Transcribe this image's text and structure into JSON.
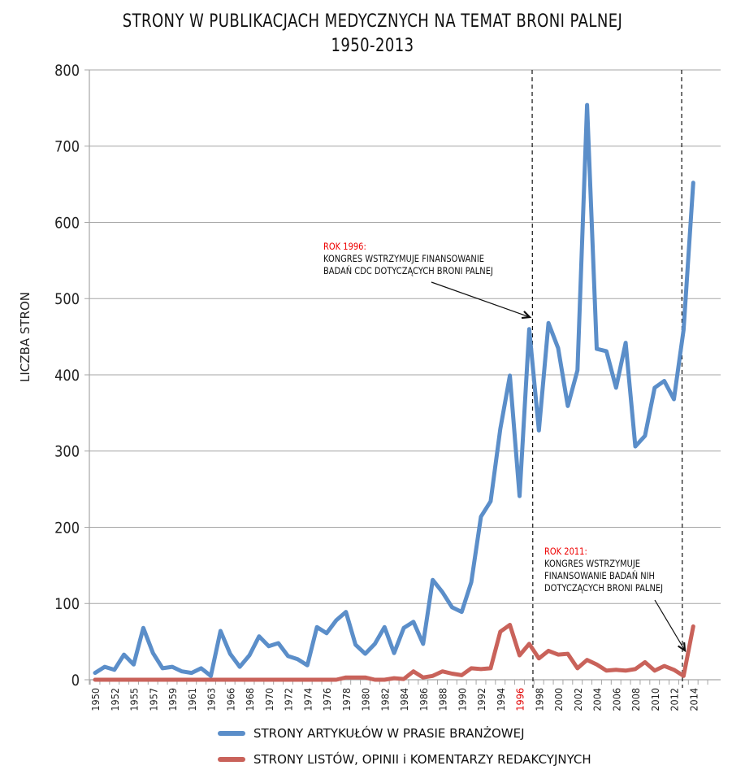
{
  "chart_data": {
    "type": "line",
    "title": "STRONY W PUBLIKACJACH MEDYCZNYCH NA TEMAT BRONI PALNEJ",
    "subtitle": "1950-2013",
    "ylabel": "LICZBA STRON",
    "xlabel": "",
    "ylim": [
      0,
      800
    ],
    "yticks": [
      "0",
      "100",
      "200",
      "300",
      "400",
      "500",
      "600",
      "700",
      "800"
    ],
    "grid": true,
    "legend_position": "bottom",
    "xtick_labels": [
      "1950",
      "1952",
      "1955",
      "1957",
      "1959",
      "1961",
      "1963",
      "1966",
      "1968",
      "1970",
      "1972",
      "1974",
      "1976",
      "1978",
      "1980",
      "1982",
      "1984",
      "1986",
      "1988",
      "1990",
      "1992",
      "1994",
      "1996",
      "1998",
      "2000",
      "2002",
      "2004",
      "2006",
      "2008",
      "2010",
      "2012",
      "2014"
    ],
    "highlight_tick": "1996",
    "highlight_color": "#e00000",
    "series": [
      {
        "name": "STRONY ARTYKUŁÓW W PRASIE BRANŻOWEJ",
        "color": "#5b8ec9",
        "values": [
          9,
          17,
          13,
          33,
          20,
          68,
          35,
          15,
          17,
          11,
          9,
          15,
          5,
          64,
          34,
          17,
          32,
          57,
          44,
          48,
          31,
          27,
          19,
          69,
          61,
          78,
          89,
          46,
          34,
          47,
          69,
          35,
          68,
          76,
          47,
          131,
          115,
          95,
          89,
          128,
          214,
          234,
          329,
          399,
          241,
          460,
          327,
          468,
          435,
          359,
          406,
          754,
          434,
          431,
          383,
          442,
          306,
          320,
          383,
          392,
          368,
          459,
          652
        ]
      },
      {
        "name": "STRONY LISTÓW, OPINII i KOMENTARZY REDAKCYJNYCH",
        "color": "#c9625a",
        "values": [
          0,
          0,
          0,
          0,
          0,
          0,
          0,
          0,
          0,
          0,
          0,
          0,
          0,
          0,
          0,
          0,
          0,
          0,
          0,
          0,
          0,
          0,
          0,
          0,
          0,
          0,
          3,
          3,
          3,
          0,
          0,
          2,
          1,
          11,
          3,
          5,
          11,
          8,
          6,
          15,
          14,
          15,
          63,
          72,
          32,
          47,
          28,
          38,
          33,
          34,
          15,
          26,
          20,
          12,
          13,
          12,
          14,
          23,
          12,
          18,
          13,
          5,
          70
        ]
      }
    ],
    "annotations": [
      {
        "heading": "ROK 1996:",
        "lines": [
          "KONGRES WSTRZYMUJE FINANSOWANIE",
          "BADAŃ CDC DOTYCZĄCYCH BRONI PALNEJ"
        ],
        "marker_index": 45
      },
      {
        "heading": "ROK 2011:",
        "lines": [
          "KONGRES WSTRZYMUJE",
          "FINANSOWANIE BADAŃ NIH",
          "DOTYCZĄCYCH BRONI PALNEJ"
        ],
        "marker_index": 61
      }
    ]
  }
}
